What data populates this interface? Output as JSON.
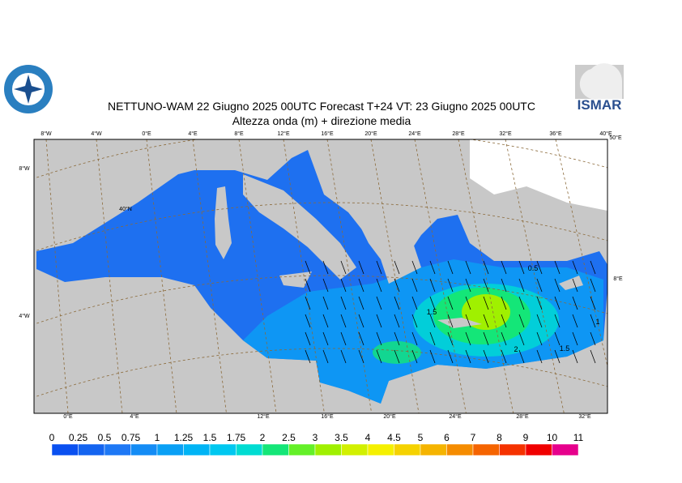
{
  "header": {
    "title": "NETTUNO-WAM 22   Giugno  2025 00UTC Forecast T+24 VT: 23   Giugno  2025 00UTC",
    "subtitle": "Altezza onda (m) + direzione media",
    "logo_right": "ISMAR"
  },
  "graticule": {
    "top": [
      "8°W",
      "4°W",
      "0°E",
      "4°E",
      "8°E",
      "12°E",
      "16°E",
      "20°E",
      "24°E",
      "28°E",
      "32°E",
      "36°E",
      "40°E",
      "50°E"
    ],
    "bottom": [
      "0°E",
      "4°E",
      "12°E",
      "16°E",
      "20°E",
      "24°E",
      "28°E",
      "32°E"
    ],
    "left": [
      "8°W",
      "40°N",
      "4°W"
    ],
    "right": [
      "8°E"
    ]
  },
  "contours": [
    "0.5",
    "1.5",
    "2",
    "1.5",
    "1"
  ],
  "colorbar": {
    "labels": [
      "0",
      "0.25",
      "0.5",
      "0.75",
      "1",
      "1.25",
      "1.5",
      "1.75",
      "2",
      "2.5",
      "3",
      "3.5",
      "4",
      "4.5",
      "5",
      "6",
      "7",
      "8",
      "9",
      "10",
      "11"
    ],
    "colors": [
      "#0a50f0",
      "#1464f0",
      "#1e78f5",
      "#148cf5",
      "#0aa0f5",
      "#00b4f5",
      "#00c8f0",
      "#00dcd2",
      "#14e678",
      "#64f028",
      "#a0f000",
      "#d2f000",
      "#f5f000",
      "#f5d200",
      "#f5b400",
      "#f58c00",
      "#f56400",
      "#f53200",
      "#f00000",
      "#e6008c"
    ]
  }
}
